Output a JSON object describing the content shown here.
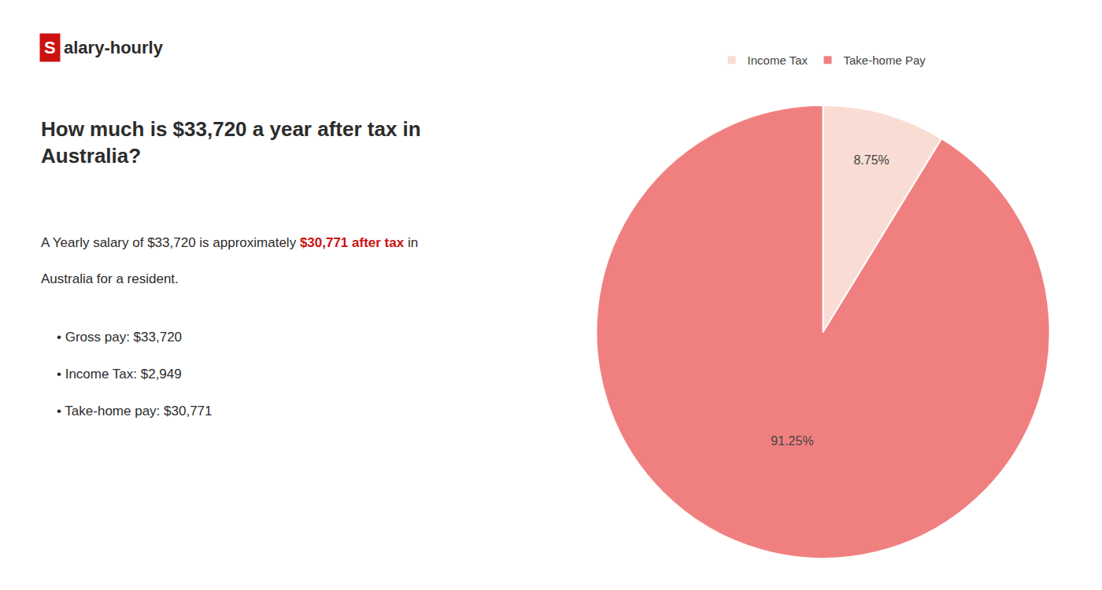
{
  "chart_data": {
    "type": "pie",
    "title": "How much is $33,720 a year after tax in\nAustralia?",
    "categories": [
      "Income Tax",
      "Take-home Pay"
    ],
    "values": [
      8.75,
      91.25
    ],
    "value_labels": [
      "8.75%",
      "91.25%"
    ],
    "colors": [
      "#f9ddd4",
      "#f08080"
    ],
    "data_labels": true,
    "legend": "top",
    "annotations": [
      [
        {
          "text": "S",
          "color": "#ffffff",
          "background": "#cc1111"
        },
        {
          "text": "alary-hourly"
        }
      ],
      [
        {
          "text": "A Yearly salary of $33,720 is approximately "
        },
        {
          "text": "$30,771 after tax",
          "color": "#cc1111"
        },
        {
          "text": " in"
        }
      ],
      [
        {
          "text": "Australia for a resident."
        }
      ],
      [
        {
          "text": "• Gross pay: $33,720"
        }
      ],
      [
        {
          "text": "• Income Tax: $2,949"
        }
      ],
      [
        {
          "text": "• Take-home pay: $30,771"
        }
      ]
    ]
  }
}
